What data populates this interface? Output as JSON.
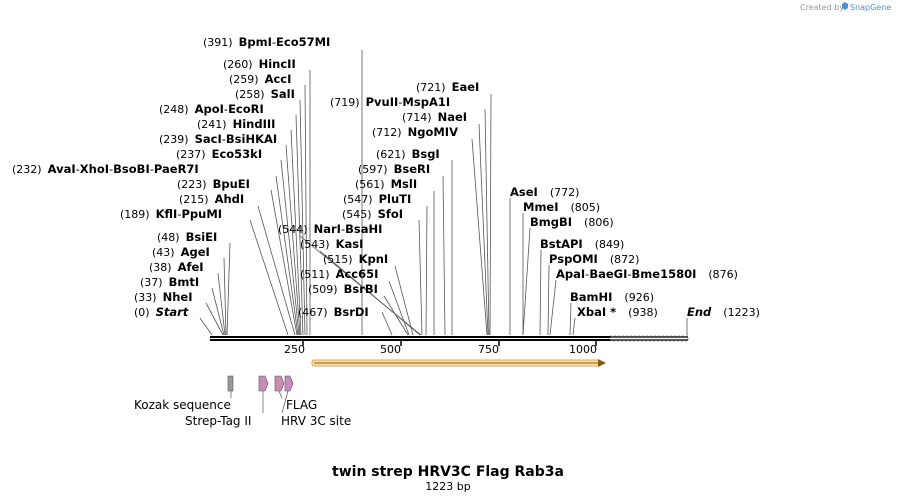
{
  "credit": {
    "prefix": "Created by",
    "brand": "SnapGene"
  },
  "sequence": {
    "name": "twin strep HRV3C Flag Rab3a",
    "length_label": "1223 bp",
    "length": 1223
  },
  "ruler_ticks": [
    "250",
    "500",
    "750",
    "1000"
  ],
  "sites": [
    {
      "pos": "(391)",
      "names": [
        "BpmI",
        "Eco57MI"
      ],
      "bp": 391
    },
    {
      "pos": "(260)",
      "names": [
        "HincII"
      ],
      "bp": 260
    },
    {
      "pos": "(259)",
      "names": [
        "AccI"
      ],
      "bp": 259
    },
    {
      "pos": "(258)",
      "names": [
        "SalI"
      ],
      "bp": 258
    },
    {
      "pos": "(248)",
      "names": [
        "ApoI",
        "EcoRI"
      ],
      "bp": 248
    },
    {
      "pos": "(241)",
      "names": [
        "HindIII"
      ],
      "bp": 241
    },
    {
      "pos": "(239)",
      "names": [
        "SacI",
        "BsiHKAI"
      ],
      "bp": 239
    },
    {
      "pos": "(237)",
      "names": [
        "Eco53kI"
      ],
      "bp": 237
    },
    {
      "pos": "(232)",
      "names": [
        "AvaI",
        "XhoI",
        "BsoBI",
        "PaeR7I"
      ],
      "bp": 232
    },
    {
      "pos": "(223)",
      "names": [
        "BpuEI"
      ],
      "bp": 223
    },
    {
      "pos": "(215)",
      "names": [
        "AhdI"
      ],
      "bp": 215
    },
    {
      "pos": "(189)",
      "names": [
        "KflI",
        "PpuMI"
      ],
      "bp": 189
    },
    {
      "pos": "(48)",
      "names": [
        "BsiEI"
      ],
      "bp": 48
    },
    {
      "pos": "(43)",
      "names": [
        "AgeI"
      ],
      "bp": 43
    },
    {
      "pos": "(38)",
      "names": [
        "AfeI"
      ],
      "bp": 38
    },
    {
      "pos": "(37)",
      "names": [
        "BmtI"
      ],
      "bp": 37
    },
    {
      "pos": "(33)",
      "names": [
        "NheI"
      ],
      "bp": 33
    },
    {
      "pos": "(0)",
      "names": [
        "Start"
      ],
      "bp": 0,
      "italic": true
    },
    {
      "pos": "(544)",
      "names": [
        "NarI",
        "BsaHI"
      ],
      "bp": 544
    },
    {
      "pos": "(543)",
      "names": [
        "KasI"
      ],
      "bp": 543
    },
    {
      "pos": "(515)",
      "names": [
        "KpnI"
      ],
      "bp": 515
    },
    {
      "pos": "(511)",
      "names": [
        "Acc65I"
      ],
      "bp": 511
    },
    {
      "pos": "(509)",
      "names": [
        "BsrBI"
      ],
      "bp": 509
    },
    {
      "pos": "(467)",
      "names": [
        "BsrDI"
      ],
      "bp": 467
    },
    {
      "pos": "(721)",
      "names": [
        "EaeI"
      ],
      "bp": 721
    },
    {
      "pos": "(719)",
      "names": [
        "PvuII",
        "MspA1I"
      ],
      "bp": 719
    },
    {
      "pos": "(714)",
      "names": [
        "NaeI"
      ],
      "bp": 714
    },
    {
      "pos": "(712)",
      "names": [
        "NgoMIV"
      ],
      "bp": 712
    },
    {
      "pos": "(621)",
      "names": [
        "BsgI"
      ],
      "bp": 621
    },
    {
      "pos": "(597)",
      "names": [
        "BseRI"
      ],
      "bp": 597
    },
    {
      "pos": "(561)",
      "names": [
        "MslI"
      ],
      "bp": 561
    },
    {
      "pos": "(547)",
      "names": [
        "PluTI"
      ],
      "bp": 547
    },
    {
      "pos": "(545)",
      "names": [
        "SfoI"
      ],
      "bp": 545
    },
    {
      "pos": "(772)",
      "names": [
        "AseI"
      ],
      "bp": 772,
      "right": true
    },
    {
      "pos": "(805)",
      "names": [
        "MmeI"
      ],
      "bp": 805,
      "right": true
    },
    {
      "pos": "(806)",
      "names": [
        "BmgBI"
      ],
      "bp": 806,
      "right": true
    },
    {
      "pos": "(849)",
      "names": [
        "BstAPI"
      ],
      "bp": 849,
      "right": true
    },
    {
      "pos": "(872)",
      "names": [
        "PspOMI"
      ],
      "bp": 872,
      "right": true
    },
    {
      "pos": "(876)",
      "names": [
        "ApaI",
        "BaeGI",
        "Bme1580I"
      ],
      "bp": 876,
      "right": true
    },
    {
      "pos": "(926)",
      "names": [
        "BamHI"
      ],
      "bp": 926,
      "right": true
    },
    {
      "pos": "(938)",
      "names": [
        "XbaI *"
      ],
      "bp": 938,
      "right": true
    },
    {
      "pos": "(1223)",
      "names": [
        "End"
      ],
      "bp": 1223,
      "right": true,
      "italic": true
    }
  ],
  "features": [
    {
      "label": "Kozak sequence",
      "color": "#9a9a9a"
    },
    {
      "label": "Strep-Tag II",
      "color": "#c58fb5"
    },
    {
      "label": "FLAG",
      "color": "#c58fb5"
    },
    {
      "label": "HRV 3C site",
      "color": "#c58fb5"
    }
  ],
  "orf_color": "#f0a030"
}
